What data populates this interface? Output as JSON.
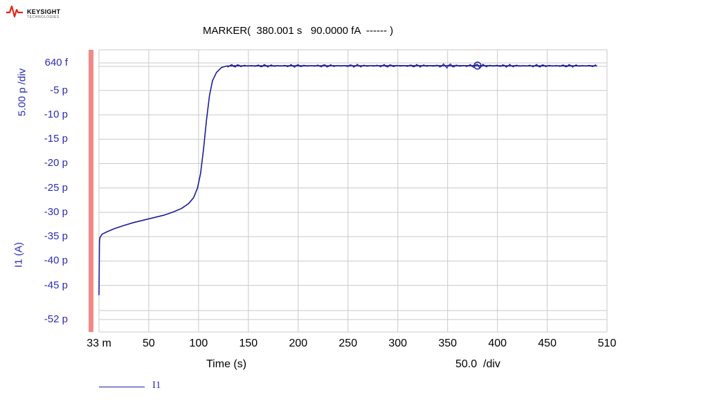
{
  "brand": {
    "name": "KEYSIGHT",
    "sub": "TECHNOLOGIES"
  },
  "marker_text": "MARKER(  380.001 s   90.0000 fA  ------ )",
  "y_axis": {
    "scale_label": "5.00 p /div",
    "name_label": "I1 (A)",
    "ticks": [
      {
        "label": "640 f",
        "value": 0.64
      },
      {
        "label": "-5 p",
        "value": -5
      },
      {
        "label": "-10 p",
        "value": -10
      },
      {
        "label": "-15 p",
        "value": -15
      },
      {
        "label": "-20 p",
        "value": -20
      },
      {
        "label": "-25 p",
        "value": -25
      },
      {
        "label": "-30 p",
        "value": -30
      },
      {
        "label": "-35 p",
        "value": -35
      },
      {
        "label": "-40 p",
        "value": -40
      },
      {
        "label": "-45 p",
        "value": -45
      },
      {
        "label": "-52 p",
        "value": -52
      }
    ]
  },
  "x_axis": {
    "label": "Time (s)",
    "div_label": "50.0  /div",
    "ticks": [
      {
        "label": "33 m",
        "value": 0.033
      },
      {
        "label": "50",
        "value": 50
      },
      {
        "label": "100",
        "value": 100
      },
      {
        "label": "150",
        "value": 150
      },
      {
        "label": "200",
        "value": 200
      },
      {
        "label": "250",
        "value": 250
      },
      {
        "label": "300",
        "value": 300
      },
      {
        "label": "350",
        "value": 350
      },
      {
        "label": "400",
        "value": 400
      },
      {
        "label": "450",
        "value": 450
      },
      {
        "label": "510",
        "value": 510
      }
    ]
  },
  "legend": {
    "label": "I1",
    "color": "#1a1a9c"
  },
  "colors": {
    "trace": "#1a1a9c",
    "grid": "#c8c8c8",
    "axis_text": "#2b2bb5",
    "marker_bar": "#f08a88"
  },
  "chart_data": {
    "type": "line",
    "xlabel": "Time (s)",
    "ylabel": "I1 (A)",
    "xlim": [
      0.033,
      510
    ],
    "ylim": [
      -52,
      0.64
    ],
    "grid": true,
    "legend_position": "bottom-left",
    "marker": {
      "x": 380.001,
      "y": 0.09
    },
    "series": [
      {
        "name": "I1",
        "points": [
          [
            0.033,
            -47
          ],
          [
            0.5,
            -36
          ],
          [
            1,
            -35.2
          ],
          [
            3,
            -34.5
          ],
          [
            8,
            -34
          ],
          [
            15,
            -33.4
          ],
          [
            25,
            -32.7
          ],
          [
            35,
            -32.1
          ],
          [
            45,
            -31.6
          ],
          [
            55,
            -31.1
          ],
          [
            65,
            -30.6
          ],
          [
            75,
            -29.9
          ],
          [
            83,
            -29.2
          ],
          [
            90,
            -28.2
          ],
          [
            95,
            -27
          ],
          [
            99,
            -25
          ],
          [
            102,
            -22
          ],
          [
            105,
            -17
          ],
          [
            108,
            -11
          ],
          [
            111,
            -6
          ],
          [
            114,
            -3
          ],
          [
            118,
            -1.3
          ],
          [
            123,
            -0.3
          ],
          [
            128,
            0
          ],
          [
            135,
            0.05
          ],
          [
            150,
            0.05
          ],
          [
            200,
            0.06
          ],
          [
            250,
            0.07
          ],
          [
            300,
            0.08
          ],
          [
            350,
            0.08
          ],
          [
            380.001,
            0.09
          ],
          [
            400,
            0.06
          ],
          [
            450,
            0.05
          ],
          [
            500,
            0.04
          ]
        ]
      }
    ]
  }
}
